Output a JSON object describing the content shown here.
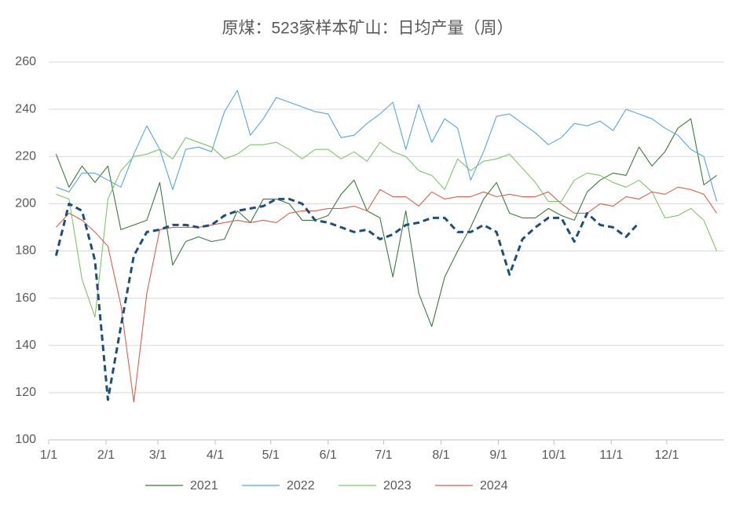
{
  "chart_data": {
    "type": "line",
    "title": "原煤：523家样本矿山：日均产量（周）",
    "x": [
      4,
      11,
      18,
      25,
      32,
      39,
      46,
      53,
      60,
      67,
      74,
      81,
      88,
      95,
      102,
      109,
      116,
      123,
      130,
      137,
      144,
      151,
      158,
      165,
      172,
      179,
      186,
      193,
      200,
      207,
      214,
      221,
      228,
      235,
      242,
      249,
      256,
      263,
      270,
      277,
      284,
      291,
      298,
      305,
      312,
      319,
      326,
      333,
      340,
      347,
      354,
      361
    ],
    "xlim": [
      0,
      365
    ],
    "xticks": [
      {
        "value": 0,
        "label": "1/1"
      },
      {
        "value": 31,
        "label": "2/1"
      },
      {
        "value": 59,
        "label": "3/1"
      },
      {
        "value": 90,
        "label": "4/1"
      },
      {
        "value": 120,
        "label": "5/1"
      },
      {
        "value": 151,
        "label": "6/1"
      },
      {
        "value": 181,
        "label": "7/1"
      },
      {
        "value": 212,
        "label": "8/1"
      },
      {
        "value": 243,
        "label": "9/1"
      },
      {
        "value": 273,
        "label": "10/1"
      },
      {
        "value": 304,
        "label": "11/1"
      },
      {
        "value": 334,
        "label": "12/1"
      }
    ],
    "ylim": [
      100,
      260
    ],
    "yticks": [
      100,
      120,
      140,
      160,
      180,
      200,
      220,
      240,
      260
    ],
    "grid": true,
    "series": [
      {
        "name": "2021",
        "color": "#3b7a3b",
        "values": [
          221,
          207,
          216,
          209,
          216,
          189,
          191,
          193,
          209,
          174,
          184,
          186,
          184,
          185,
          197,
          192,
          202,
          202,
          200,
          193,
          193,
          195,
          204,
          210,
          197,
          194,
          169,
          197,
          162,
          148,
          169,
          180,
          190,
          202,
          209,
          196,
          194,
          194,
          198,
          195,
          193,
          205,
          210,
          213,
          212,
          224,
          216,
          222,
          232,
          236,
          208,
          212
        ]
      },
      {
        "name": "2022",
        "color": "#5aa5dc",
        "values": [
          207,
          205,
          213,
          213,
          210,
          207,
          221,
          233,
          223,
          206,
          223,
          224,
          222,
          239,
          248,
          229,
          236,
          245,
          243,
          241,
          239,
          238,
          228,
          229,
          234,
          238,
          243,
          223,
          242,
          226,
          236,
          232,
          210,
          222,
          237,
          238,
          234,
          230,
          225,
          228,
          234,
          233,
          235,
          231,
          240,
          238,
          236,
          232,
          229,
          223,
          220,
          201
        ]
      },
      {
        "name": "2023",
        "color": "#80c46b",
        "values": [
          204,
          202,
          168,
          152,
          202,
          214,
          220,
          221,
          223,
          219,
          228,
          226,
          224,
          219,
          221,
          225,
          225,
          226,
          223,
          219,
          223,
          223,
          219,
          222,
          218,
          226,
          222,
          220,
          214,
          212,
          206,
          219,
          214,
          218,
          219,
          221,
          215,
          209,
          201,
          201,
          210,
          213,
          212,
          209,
          207,
          210,
          205,
          194,
          195,
          198,
          193,
          180
        ]
      },
      {
        "name": "2024",
        "color": "#d2644e",
        "values": [
          190,
          196,
          193,
          188,
          182,
          157,
          116,
          162,
          189,
          190,
          190,
          190,
          191,
          192,
          193,
          192,
          193,
          192,
          196,
          197,
          197,
          198,
          198,
          199,
          197,
          206,
          203,
          203,
          199,
          205,
          202,
          203,
          203,
          205,
          203,
          204,
          203,
          203,
          205,
          200,
          196,
          196,
          200,
          199,
          203,
          202,
          205,
          204,
          207,
          206,
          204,
          196
        ]
      },
      {
        "color": "#1f4e79",
        "dashed": true,
        "values": [
          178,
          200,
          197,
          176,
          117,
          148,
          178,
          188,
          189,
          191,
          191,
          190,
          191,
          195,
          197,
          198,
          199,
          202,
          202,
          200,
          193,
          192,
          190,
          188,
          189,
          185,
          187,
          191,
          192,
          194,
          194,
          188,
          188,
          191,
          188,
          170,
          185,
          190,
          194,
          194,
          184,
          196,
          191,
          190,
          186,
          192,
          null,
          null,
          null,
          null,
          null,
          null
        ]
      }
    ]
  }
}
